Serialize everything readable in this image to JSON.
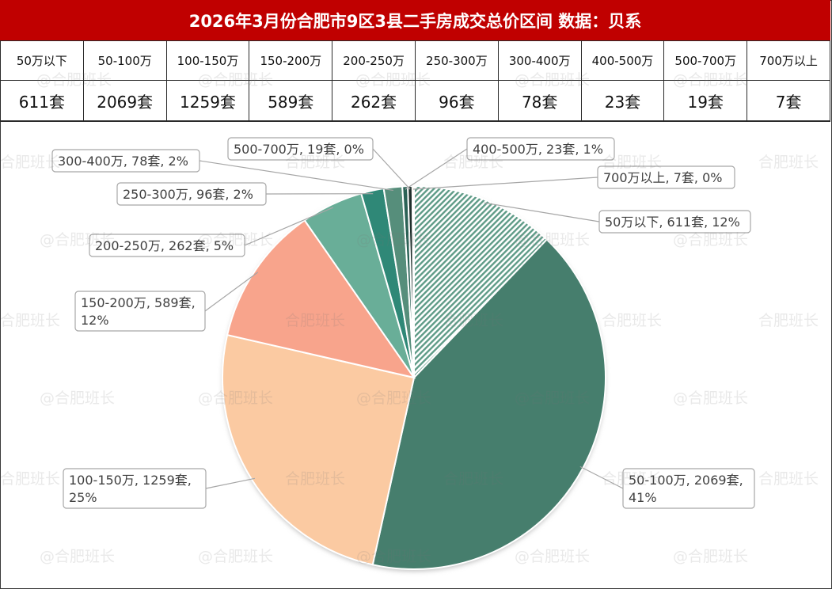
{
  "title": "2026年3月份合肥市9区3县二手房成交总价区间 数据：贝系",
  "watermark": "@合肥班长",
  "watermark_short": "合肥班长",
  "table": {
    "headers": [
      "50万以下",
      "50-100万",
      "100-150万",
      "150-200万",
      "200-250万",
      "250-300万",
      "300-400万",
      "400-500万",
      "500-700万",
      "700万以上"
    ],
    "values": [
      "611套",
      "2069套",
      "1259套",
      "589套",
      "262套",
      "96套",
      "78套",
      "23套",
      "19套",
      "7套"
    ]
  },
  "chart_data": {
    "type": "pie",
    "start": "12 o'clock",
    "direction": "clockwise",
    "slices": [
      {
        "category": "50万以下",
        "value": 611,
        "percent": "12%",
        "label_lines": [
          "50万以下, 611套, 12%"
        ],
        "color": "#5e9b87",
        "pattern": "diagonal-hatch"
      },
      {
        "category": "50-100万",
        "value": 2069,
        "percent": "41%",
        "label_lines": [
          "50-100万, 2069套,",
          "41%"
        ],
        "color": "#467e6d"
      },
      {
        "category": "100-150万",
        "value": 1259,
        "percent": "25%",
        "label_lines": [
          "100-150万, 1259套,",
          "25%"
        ],
        "color": "#fbcaa2"
      },
      {
        "category": "150-200万",
        "value": 589,
        "percent": "12%",
        "label_lines": [
          "150-200万, 589套,",
          "12%"
        ],
        "color": "#f8a48c"
      },
      {
        "category": "200-250万",
        "value": 262,
        "percent": "5%",
        "label_lines": [
          "200-250万, 262套, 5%"
        ],
        "color": "#69ae98"
      },
      {
        "category": "250-300万",
        "value": 96,
        "percent": "2%",
        "label_lines": [
          "250-300万, 96套, 2%"
        ],
        "color": "#2f8877"
      },
      {
        "category": "300-400万",
        "value": 78,
        "percent": "2%",
        "label_lines": [
          "300-400万, 78套, 2%"
        ],
        "color": "#568e7b"
      },
      {
        "category": "400-500万",
        "value": 23,
        "percent": "1%",
        "label_lines": [
          "400-500万, 23套, 1%"
        ],
        "color": "#2b6256"
      },
      {
        "category": "500-700万",
        "value": 19,
        "percent": "0%",
        "label_lines": [
          "500-700万, 19套, 0%"
        ],
        "color": "#1f2f2c"
      },
      {
        "category": "700万以上",
        "value": 7,
        "percent": "0%",
        "label_lines": [
          "700万以上, 7套, 0%"
        ],
        "color": "#e67e22"
      }
    ]
  }
}
